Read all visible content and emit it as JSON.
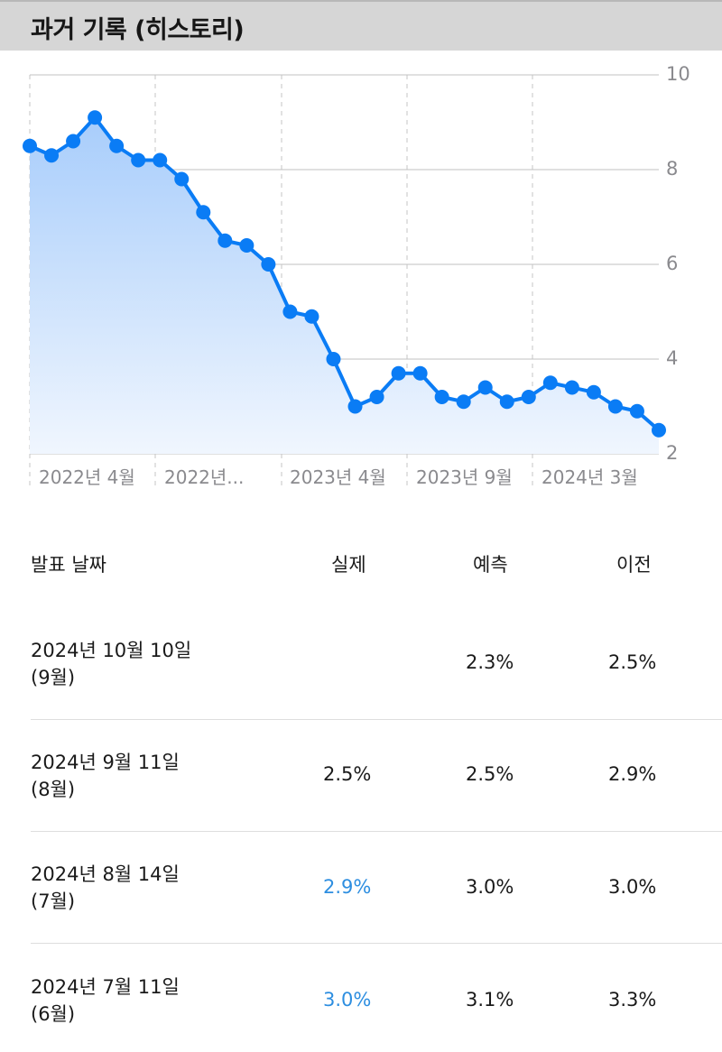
{
  "header": {
    "title": "과거 기록 (히스토리)"
  },
  "colors": {
    "line": "#0a7cf5",
    "area_top": "#a8cdfb",
    "area_bottom": "#f0f6fe",
    "grid": "#d5d5d5",
    "axis_text": "#8a8a8e",
    "highlight_value": "#2d8ee0",
    "header_bg": "#d6d6d6"
  },
  "chart_data": {
    "type": "area",
    "title": "과거 기록 (히스토리)",
    "xlabel": "",
    "ylabel": "",
    "ylim": [
      2,
      10
    ],
    "y_ticks": [
      10,
      8,
      6,
      4,
      2
    ],
    "y_axis_position": "right",
    "x_tick_labels": [
      "2022년 4월",
      "2022년...",
      "2023년 4월",
      "2023년 9월",
      "2024년 3월"
    ],
    "grid": {
      "horizontal": true,
      "vertical_dashed": true
    },
    "legend": null,
    "series": [
      {
        "name": "실제",
        "values": [
          8.5,
          8.3,
          8.6,
          9.1,
          8.5,
          8.2,
          8.2,
          7.8,
          7.1,
          6.5,
          6.4,
          6.0,
          5.0,
          4.9,
          4.0,
          3.0,
          3.2,
          3.7,
          3.7,
          3.2,
          3.1,
          3.4,
          3.1,
          3.2,
          3.5,
          3.4,
          3.3,
          3.0,
          2.9,
          2.5
        ]
      }
    ]
  },
  "table": {
    "headers": {
      "date": "발표 날짜",
      "actual": "실제",
      "forecast": "예측",
      "previous": "이전"
    },
    "rows": [
      {
        "date": "2024년 10월 10일",
        "period": "(9월)",
        "actual": "",
        "forecast": "2.3%",
        "previous": "2.5%",
        "actual_highlight": false
      },
      {
        "date": "2024년 9월 11일",
        "period": "(8월)",
        "actual": "2.5%",
        "forecast": "2.5%",
        "previous": "2.9%",
        "actual_highlight": false
      },
      {
        "date": "2024년 8월 14일",
        "period": "(7월)",
        "actual": "2.9%",
        "forecast": "3.0%",
        "previous": "3.0%",
        "actual_highlight": true
      },
      {
        "date": "2024년 7월 11일",
        "period": "(6월)",
        "actual": "3.0%",
        "forecast": "3.1%",
        "previous": "3.3%",
        "actual_highlight": true
      }
    ]
  }
}
